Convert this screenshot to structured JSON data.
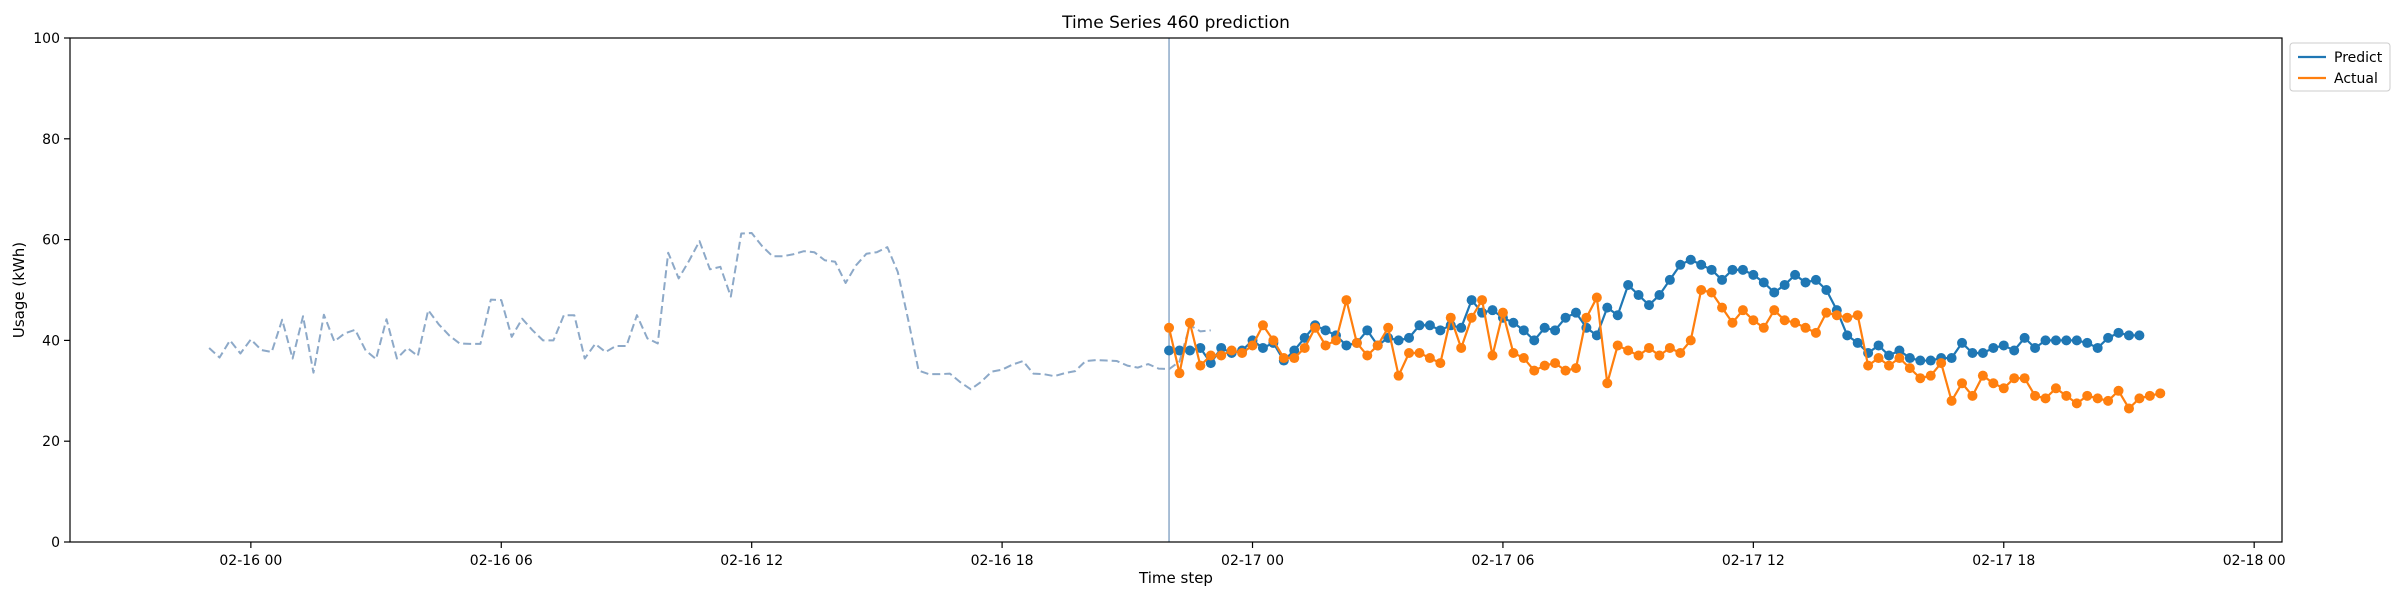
{
  "chart_data": {
    "type": "line",
    "title": "Time Series 460 prediction",
    "xlabel": "Time step",
    "ylabel": "Usage (kWh)",
    "ylim": [
      0,
      100
    ],
    "y_ticks": [
      0,
      20,
      40,
      60,
      80,
      100
    ],
    "x_range": [
      "2024-02-15 19:40",
      "2024-02-18 00:40"
    ],
    "x_ticks": [
      {
        "t": "2024-02-16 00:00",
        "label": "02-16 00"
      },
      {
        "t": "2024-02-16 06:00",
        "label": "02-16 06"
      },
      {
        "t": "2024-02-16 12:00",
        "label": "02-16 12"
      },
      {
        "t": "2024-02-16 18:00",
        "label": "02-16 18"
      },
      {
        "t": "2024-02-17 00:00",
        "label": "02-17 00"
      },
      {
        "t": "2024-02-17 06:00",
        "label": "02-17 06"
      },
      {
        "t": "2024-02-17 12:00",
        "label": "02-17 12"
      },
      {
        "t": "2024-02-17 18:00",
        "label": "02-17 18"
      },
      {
        "t": "2024-02-18 00:00",
        "label": "02-18 00"
      }
    ],
    "grid": false,
    "legend_position": "outside top-right",
    "forecast_start": "2024-02-16 22:00",
    "colors": {
      "predict": "#1f77b4",
      "actual": "#ff7f0e",
      "history": "#8da9c8",
      "divider": "#8da9c8"
    },
    "history": {
      "start": "2024-02-15 23:00",
      "step_minutes": 15,
      "values": [
        38.5,
        36.6,
        40.0,
        37.4,
        40.2,
        38.1,
        37.7,
        44.1,
        36.4,
        44.8,
        33.6,
        45.1,
        39.8,
        41.4,
        42.1,
        38.0,
        36.3,
        44.2,
        36.4,
        38.5,
        36.9,
        46.0,
        43.2,
        41.0,
        39.4,
        39.3,
        39.3,
        48.1,
        48.0,
        40.7,
        44.3,
        42.0,
        40.0,
        40.0,
        45.0,
        45.0,
        36.4,
        39.3,
        37.7,
        38.9,
        38.9,
        45.0,
        40.4,
        39.4,
        57.4,
        52.3,
        55.8,
        59.7,
        54.1,
        54.6,
        48.7,
        61.2,
        61.3,
        58.7,
        56.7,
        56.7,
        57.1,
        57.7,
        57.5,
        55.9,
        55.6,
        51.4,
        54.9,
        57.2,
        57.5,
        58.5,
        53.6,
        44.1,
        34.0,
        33.3,
        33.3,
        33.4,
        31.7,
        30.3,
        31.8,
        33.8,
        34.2,
        35.2,
        35.9,
        33.4,
        33.3,
        32.9,
        33.5,
        33.9,
        35.9,
        36.1,
        36.0,
        35.9,
        35.0,
        34.6,
        35.3,
        34.4,
        34.3,
        35.8,
        43.0,
        41.8,
        42.0
      ]
    },
    "series": [
      {
        "name": "Predict",
        "start": "2024-02-16 22:00",
        "step_minutes": 15,
        "values": [
          38.0,
          38.0,
          38.0,
          38.5,
          35.5,
          38.5,
          37.5,
          38.0,
          40.0,
          38.5,
          39.5,
          36.0,
          38.0,
          40.5,
          43.0,
          42.0,
          41.0,
          39.0,
          39.5,
          42.0,
          39.0,
          40.5,
          40.0,
          40.5,
          43.0,
          43.0,
          42.0,
          43.0,
          42.5,
          48.0,
          45.5,
          46.0,
          44.5,
          43.5,
          42.0,
          40.0,
          42.5,
          42.0,
          44.5,
          45.5,
          42.5,
          41.0,
          46.5,
          45.0,
          51.0,
          49.0,
          47.0,
          49.0,
          52.0,
          55.0,
          56.0,
          55.0,
          54.0,
          52.0,
          54.0,
          54.0,
          53.0,
          51.5,
          49.5,
          51.0,
          53.0,
          51.5,
          52.0,
          50.0,
          46.0,
          41.0,
          39.5,
          37.5,
          39.0,
          37.0,
          38.0,
          36.5,
          36.0,
          36.0,
          36.5,
          36.5,
          39.5,
          37.5,
          37.5,
          38.5,
          39.0,
          38.0,
          40.5,
          38.5,
          40.0,
          40.0,
          40.0,
          40.0,
          39.5,
          38.5,
          40.5,
          41.5,
          41.0,
          41.0
        ]
      },
      {
        "name": "Actual",
        "start": "2024-02-16 22:00",
        "step_minutes": 15,
        "values": [
          42.5,
          33.5,
          43.5,
          35.0,
          37.0,
          37.0,
          38.0,
          37.5,
          39.0,
          43.0,
          40.0,
          36.5,
          36.5,
          38.5,
          42.5,
          39.0,
          40.0,
          48.0,
          39.5,
          37.0,
          39.0,
          42.5,
          33.0,
          37.5,
          37.5,
          36.5,
          35.5,
          44.5,
          38.5,
          44.5,
          48.0,
          37.0,
          45.5,
          37.5,
          36.5,
          34.0,
          35.0,
          35.5,
          34.0,
          34.5,
          44.5,
          48.5,
          31.5,
          39.0,
          38.0,
          37.0,
          38.5,
          37.0,
          38.5,
          37.5,
          40.0,
          50.0,
          49.5,
          46.5,
          43.5,
          46.0,
          44.0,
          42.5,
          46.0,
          44.0,
          43.5,
          42.5,
          41.5,
          45.5,
          45.0,
          44.5,
          45.0,
          35.0,
          36.5,
          35.0,
          36.5,
          34.5,
          32.5,
          33.0,
          35.5,
          28.0,
          31.5,
          29.0,
          33.0,
          31.5,
          30.5,
          32.5,
          32.5,
          29.0,
          28.5,
          30.5,
          29.0,
          27.5,
          29.0,
          28.5,
          28.0,
          30.0,
          26.5,
          28.5,
          29.0,
          29.5
        ]
      }
    ],
    "legend": [
      "Predict",
      "Actual"
    ]
  }
}
